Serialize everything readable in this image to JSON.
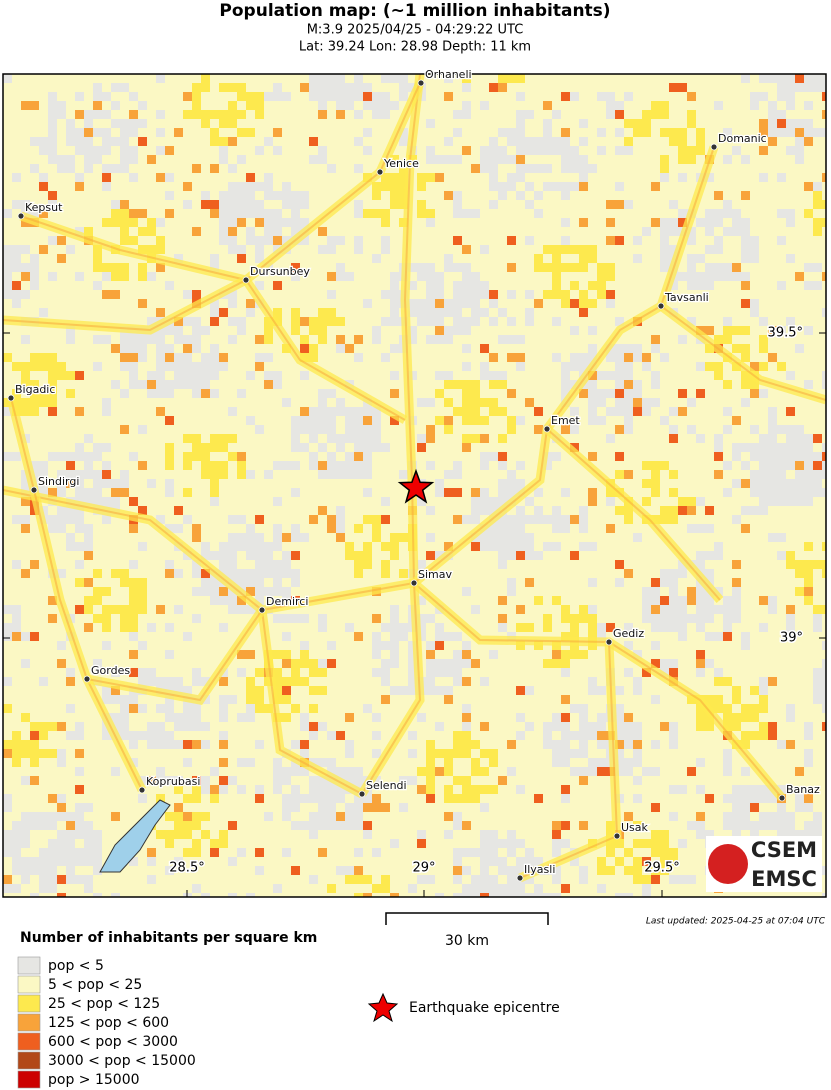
{
  "header": {
    "title": "Population map: (~1 million inhabitants)",
    "line1": "M:3.9 2025/04/25 - 04:29:22 UTC",
    "line2": "Lat: 39.24 Lon: 28.98 Depth: 11 km"
  },
  "cities": [
    "Orhaneli",
    "Yenice",
    "Domanic",
    "Kepsut",
    "Dursunbey",
    "Tavsanli",
    "Bigadic",
    "Emet",
    "Sindirgi",
    "Simav",
    "Demirci",
    "Gediz",
    "Gordes",
    "Koprubasi",
    "Selendi",
    "Banaz",
    "Usak",
    "Ilyasli"
  ],
  "longitude_labels": [
    "28.5°",
    "29°",
    "29.5°"
  ],
  "latitude_labels": [
    "39.5°",
    "39°"
  ],
  "scale": "30 km",
  "updated": "Last updated: 2025-04-25 at 07:04 UTC",
  "logo": [
    "CSEM",
    "EMSC"
  ],
  "legend": {
    "title": "Number of inhabitants per square km",
    "items": [
      {
        "label": "pop < 5",
        "color": "#e6e6e3"
      },
      {
        "label": "5 < pop < 25",
        "color": "#fbf8c4"
      },
      {
        "label": "25 < pop < 125",
        "color": "#fde94e"
      },
      {
        "label": "125 < pop < 600",
        "color": "#f8a33a"
      },
      {
        "label": "600 < pop < 3000",
        "color": "#ef5f1f"
      },
      {
        "label": "3000 < pop < 15000",
        "color": "#b24818"
      },
      {
        "label": "pop > 15000",
        "color": "#cc0000"
      }
    ],
    "epicentre": "Earthquake epicentre"
  }
}
